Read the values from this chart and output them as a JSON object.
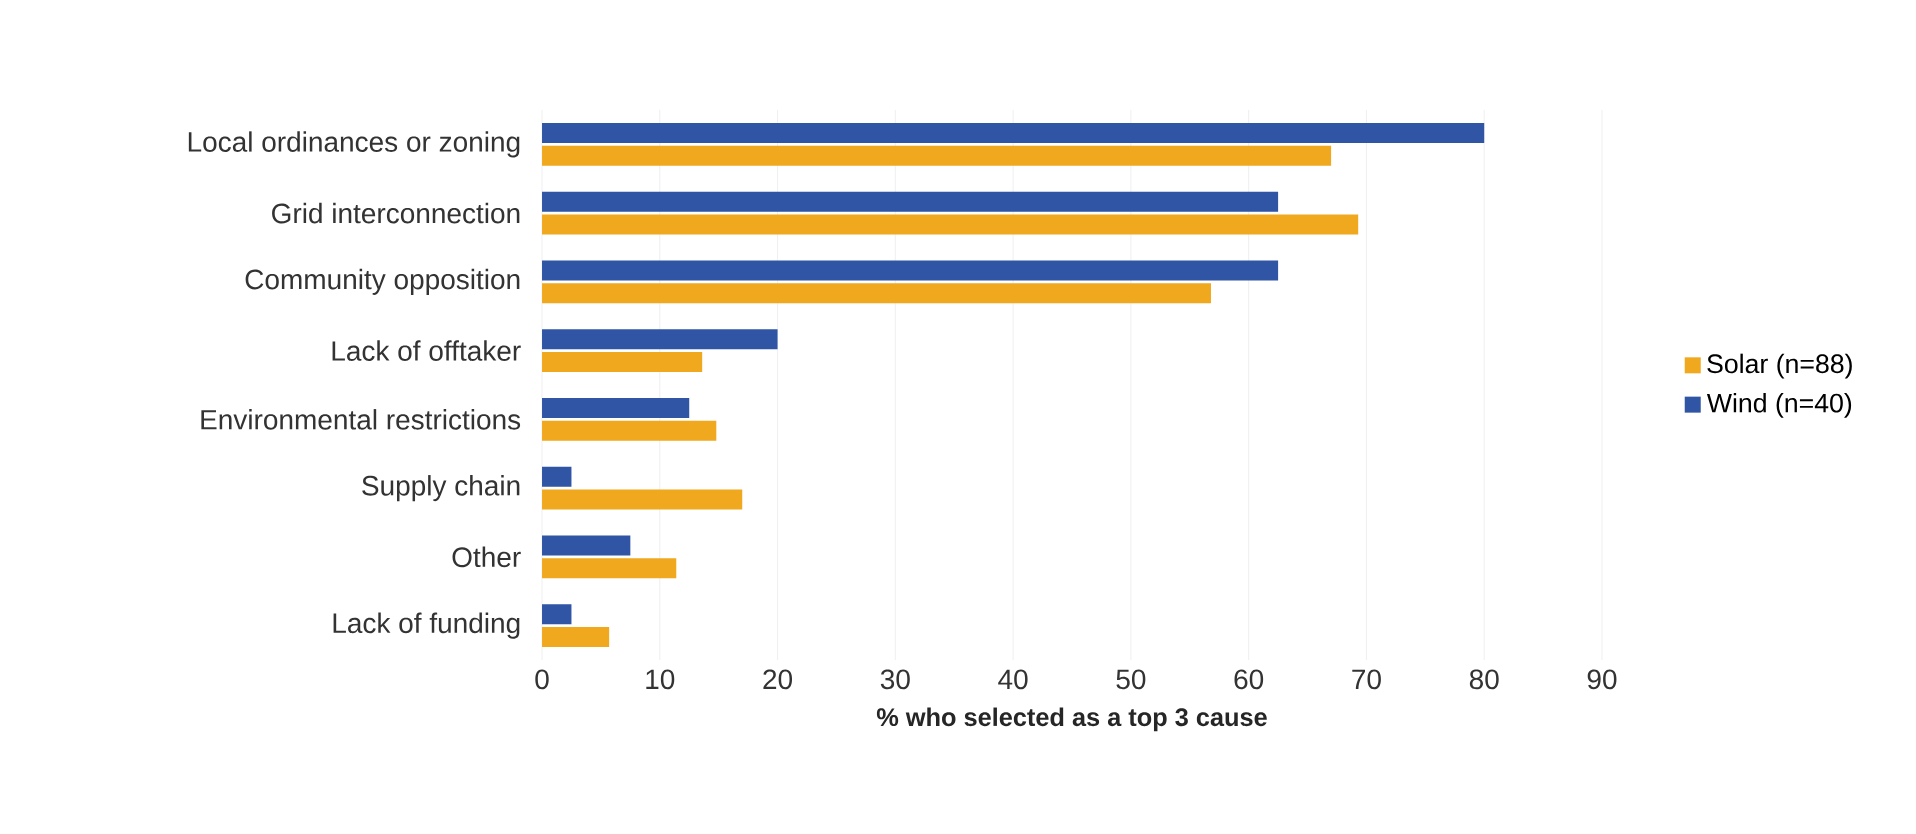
{
  "chart_data": {
    "type": "bar",
    "orientation": "horizontal",
    "xlabel": "% who selected as a top 3 cause",
    "categories": [
      "Local ordinances or zoning",
      "Grid interconnection",
      "Community opposition",
      "Lack of offtaker",
      "Environmental restrictions",
      "Supply chain",
      "Other",
      "Lack of funding"
    ],
    "series": [
      {
        "name": "Solar (n=88)",
        "color": "#f0a81e",
        "values": [
          67.0,
          69.3,
          56.8,
          13.6,
          14.8,
          17.0,
          11.4,
          5.7
        ]
      },
      {
        "name": "Wind (n=40)",
        "color": "#2f55a4",
        "values": [
          80,
          62.5,
          62.5,
          20,
          12.5,
          2.5,
          7.5,
          2.5
        ]
      }
    ],
    "xlim": [
      0,
      90
    ],
    "xticks": [
      0,
      10,
      20,
      30,
      40,
      50,
      60,
      70,
      80,
      90
    ],
    "grid": "x",
    "legend": "right"
  }
}
